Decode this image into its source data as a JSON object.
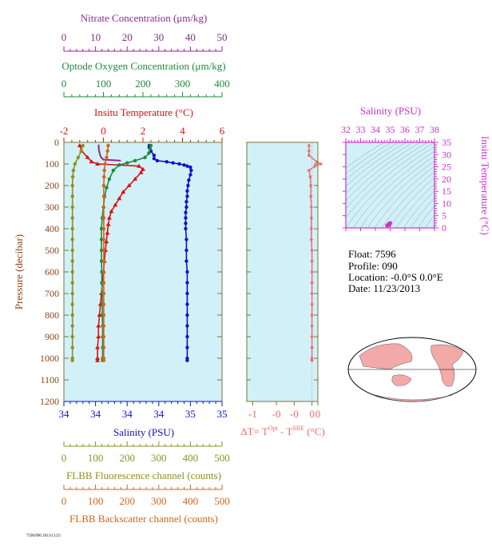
{
  "colors": {
    "nitrate": "#8b2a8b",
    "oxygen": "#1f8a3a",
    "temperature": "#dd1111",
    "salinity": "#1010cc",
    "fluorescence": "#8f8f22",
    "backscatter": "#d0661a",
    "delta_t": "#f06a6a",
    "ts_axis": "#cc33cc",
    "panel_bg": "#d2f0f8",
    "frame": "#777733"
  },
  "panels": {
    "nitrate_title": "Nitrate Concentration (μm/kg)",
    "oxygen_title": "Optode Oxygen Concentration (μm/kg)",
    "temperature_title": "Insitu Temperature (°C)",
    "salinity_bottom_title": "Salinity (PSU)",
    "fluorescence_title": "FLBB Fluorescence channel (counts)",
    "backscatter_title": "FLBB Backscatter channel (counts)",
    "pressure_label": "Pressure (decibar)",
    "dt_label_main": "ΔT= T",
    "dt_label_sup1": "Opt",
    "dt_label_mid": " - T",
    "dt_label_sup2": "SBE",
    "dt_label_end": " (°C)",
    "ts_title": "Salinity (PSU)",
    "ts_ylabel": "Insitu Temperature (°C)",
    "footer_code": "7596/090 2013/11/23"
  },
  "info": {
    "float": "Float:  7596",
    "profile": "Profile:  090",
    "location": "Location:  -0.0°S    0.0°E",
    "date": "Date:  11/23/2013"
  },
  "chart_data": [
    {
      "type": "line",
      "name": "profile",
      "ylabel": "Pressure (decibar)",
      "ylim": [
        1200,
        0
      ],
      "yticks": [
        0,
        100,
        200,
        300,
        400,
        500,
        600,
        700,
        800,
        900,
        1000,
        1100,
        1200
      ],
      "axes": {
        "nitrate": {
          "label": "Nitrate Concentration (μm/kg)",
          "range": [
            0,
            50
          ],
          "ticks": [
            "0",
            "10",
            "20",
            "30",
            "40",
            "50"
          ]
        },
        "oxygen": {
          "label": "Optode Oxygen Concentration (μm/kg)",
          "range": [
            0,
            400
          ],
          "ticks": [
            "0",
            "100",
            "200",
            "300",
            "400"
          ]
        },
        "temperature": {
          "label": "Insitu Temperature (°C)",
          "range": [
            -2,
            6
          ],
          "ticks": [
            "-2",
            "0",
            "2",
            "4",
            "6"
          ]
        },
        "salinity": {
          "label": "Salinity (PSU)",
          "range": [
            34,
            35
          ],
          "ticks": [
            "34",
            "34",
            "34",
            "34",
            "35",
            "35"
          ]
        },
        "fluorescence": {
          "label": "FLBB Fluorescence channel (counts)",
          "range": [
            0,
            500
          ],
          "ticks": [
            "0",
            "100",
            "200",
            "300",
            "400",
            "500"
          ]
        },
        "backscatter": {
          "label": "FLBB Backscatter channel (counts)",
          "range": [
            0,
            500
          ],
          "ticks": [
            "0",
            "100",
            "200",
            "300",
            "400",
            "500"
          ]
        }
      },
      "series": [
        {
          "key": "nitrate",
          "axis": "nitrate",
          "marker": "none",
          "points": [
            [
              11.0,
              10
            ],
            [
              11.0,
              25
            ],
            [
              11.2,
              45
            ],
            [
              11.5,
              60
            ],
            [
              11.8,
              70
            ],
            [
              12.5,
              80
            ],
            [
              18.0,
              85
            ]
          ]
        },
        {
          "key": "salinity",
          "axis": "salinity",
          "marker": "circle",
          "points": [
            [
              34.54,
              15
            ],
            [
              34.54,
              25
            ],
            [
              34.55,
              40
            ],
            [
              34.57,
              60
            ],
            [
              34.57,
              75
            ],
            [
              34.59,
              85
            ],
            [
              34.65,
              90
            ],
            [
              34.69,
              95
            ],
            [
              34.73,
              100
            ],
            [
              34.76,
              105
            ],
            [
              34.78,
              110
            ],
            [
              34.8,
              115
            ],
            [
              34.805,
              130
            ],
            [
              34.8,
              150
            ],
            [
              34.79,
              175
            ],
            [
              34.785,
              200
            ],
            [
              34.78,
              225
            ],
            [
              34.78,
              250
            ],
            [
              34.775,
              275
            ],
            [
              34.775,
              300
            ],
            [
              34.77,
              325
            ],
            [
              34.77,
              350
            ],
            [
              34.77,
              375
            ],
            [
              34.77,
              400
            ],
            [
              34.775,
              450
            ],
            [
              34.775,
              500
            ],
            [
              34.775,
              550
            ],
            [
              34.78,
              600
            ],
            [
              34.78,
              650
            ],
            [
              34.78,
              700
            ],
            [
              34.78,
              750
            ],
            [
              34.78,
              800
            ],
            [
              34.78,
              850
            ],
            [
              34.78,
              900
            ],
            [
              34.78,
              950
            ],
            [
              34.78,
              1000
            ],
            [
              34.78,
              1010
            ]
          ]
        },
        {
          "key": "temperature",
          "axis": "temperature",
          "marker": "triangle",
          "points": [
            [
              -1.2,
              15
            ],
            [
              -1.1,
              40
            ],
            [
              -0.8,
              70
            ],
            [
              -0.6,
              90
            ],
            [
              -0.3,
              100
            ],
            [
              1.8,
              110
            ],
            [
              2.0,
              125
            ],
            [
              1.9,
              140
            ],
            [
              1.6,
              170
            ],
            [
              1.3,
              200
            ],
            [
              1.0,
              230
            ],
            [
              0.8,
              260
            ],
            [
              0.6,
              290
            ],
            [
              0.4,
              320
            ],
            [
              0.3,
              350
            ],
            [
              0.25,
              380
            ],
            [
              0.2,
              420
            ],
            [
              0.15,
              460
            ],
            [
              0.1,
              500
            ],
            [
              0.05,
              550
            ],
            [
              -0.0,
              600
            ],
            [
              -0.05,
              650
            ],
            [
              -0.1,
              700
            ],
            [
              -0.15,
              750
            ],
            [
              -0.2,
              800
            ],
            [
              -0.25,
              850
            ],
            [
              -0.25,
              900
            ],
            [
              -0.3,
              950
            ],
            [
              -0.3,
              1000
            ],
            [
              -0.3,
              1010
            ]
          ]
        },
        {
          "key": "oxygen",
          "axis": "oxygen",
          "marker": "circle",
          "points": [
            [
              220,
              15
            ],
            [
              218,
              30
            ],
            [
              215,
              50
            ],
            [
              205,
              70
            ],
            [
              180,
              85
            ],
            [
              160,
              95
            ],
            [
              140,
              105
            ],
            [
              125,
              130
            ],
            [
              115,
              170
            ],
            [
              108,
              210
            ],
            [
              103,
              250
            ],
            [
              100,
              300
            ],
            [
              97,
              350
            ],
            [
              95,
              400
            ],
            [
              95,
              450
            ],
            [
              95,
              500
            ],
            [
              95,
              550
            ],
            [
              96,
              600
            ],
            [
              96,
              650
            ],
            [
              97,
              700
            ],
            [
              97,
              750
            ],
            [
              97,
              800
            ],
            [
              98,
              850
            ],
            [
              98,
              900
            ],
            [
              98,
              950
            ],
            [
              98,
              1000
            ],
            [
              98,
              1010
            ]
          ]
        },
        {
          "key": "fluorescence",
          "axis": "fluorescence",
          "marker": "circle",
          "points": [
            [
              60,
              15
            ],
            [
              55,
              40
            ],
            [
              45,
              70
            ],
            [
              35,
              100
            ],
            [
              30,
              130
            ],
            [
              28,
              160
            ],
            [
              27,
              200
            ],
            [
              27,
              250
            ],
            [
              27,
              300
            ],
            [
              27,
              350
            ],
            [
              27,
              400
            ],
            [
              27,
              450
            ],
            [
              27,
              500
            ],
            [
              27,
              550
            ],
            [
              27,
              600
            ],
            [
              27,
              650
            ],
            [
              27,
              700
            ],
            [
              27,
              750
            ],
            [
              27,
              800
            ],
            [
              27,
              850
            ],
            [
              27,
              900
            ],
            [
              27,
              950
            ],
            [
              27,
              1000
            ],
            [
              27,
              1010
            ]
          ]
        },
        {
          "key": "backscatter",
          "axis": "backscatter",
          "marker": "circle",
          "points": [
            [
              140,
              15
            ],
            [
              138,
              40
            ],
            [
              135,
              70
            ],
            [
              130,
              100
            ],
            [
              128,
              130
            ],
            [
              127,
              160
            ],
            [
              126,
              200
            ],
            [
              126,
              250
            ],
            [
              126,
              300
            ],
            [
              126,
              350
            ],
            [
              126,
              400
            ],
            [
              126,
              450
            ],
            [
              126,
              500
            ],
            [
              126,
              550
            ],
            [
              126,
              600
            ],
            [
              126,
              650
            ],
            [
              126,
              700
            ],
            [
              126,
              750
            ],
            [
              126,
              800
            ],
            [
              126,
              850
            ],
            [
              126,
              900
            ],
            [
              126,
              950
            ],
            [
              126,
              1000
            ],
            [
              126,
              1010
            ]
          ]
        }
      ]
    },
    {
      "type": "line",
      "name": "delta_t",
      "xlabel": "ΔT= T^Opt - T^SBE (°C)",
      "xlim": [
        -1.1,
        0.1
      ],
      "xticks": [
        -1,
        -0.6,
        -0.3,
        0,
        0.1
      ],
      "xticklabels": [
        "-1",
        "-0",
        "-0",
        "0",
        "0"
      ],
      "ylim": [
        1200,
        0
      ],
      "points": [
        [
          -0.05,
          15
        ],
        [
          -0.05,
          40
        ],
        [
          -0.05,
          60
        ],
        [
          0.08,
          90
        ],
        [
          0.15,
          100
        ],
        [
          0.05,
          110
        ],
        [
          -0.05,
          130
        ],
        [
          -0.03,
          160
        ],
        [
          -0.02,
          200
        ],
        [
          -0.02,
          250
        ],
        [
          -0.01,
          300
        ],
        [
          -0.01,
          350
        ],
        [
          -0.01,
          400
        ],
        [
          -0.01,
          450
        ],
        [
          0.0,
          500
        ],
        [
          0.0,
          550
        ],
        [
          0.0,
          600
        ],
        [
          0.0,
          650
        ],
        [
          0.0,
          700
        ],
        [
          0.0,
          750
        ],
        [
          0.0,
          800
        ],
        [
          0.0,
          850
        ],
        [
          0.0,
          900
        ],
        [
          0.0,
          950
        ],
        [
          0.0,
          1000
        ],
        [
          0.0,
          1010
        ]
      ]
    },
    {
      "type": "scatter",
      "name": "ts_diagram",
      "title": "Salinity (PSU)",
      "ylabel": "Insitu Temperature (°C)",
      "xlim": [
        32,
        38
      ],
      "ylim": [
        0,
        35
      ],
      "xticklabels": [
        "32",
        "33",
        "34",
        "35",
        "36",
        "37",
        "38"
      ],
      "yticklabels": [
        "0",
        "5",
        "10",
        "15",
        "20",
        "25",
        "30",
        "35"
      ],
      "points": [
        [
          34.9,
          1.5
        ],
        [
          34.8,
          1.0
        ],
        [
          35.0,
          2.0
        ],
        [
          34.95,
          1.2
        ]
      ]
    }
  ]
}
